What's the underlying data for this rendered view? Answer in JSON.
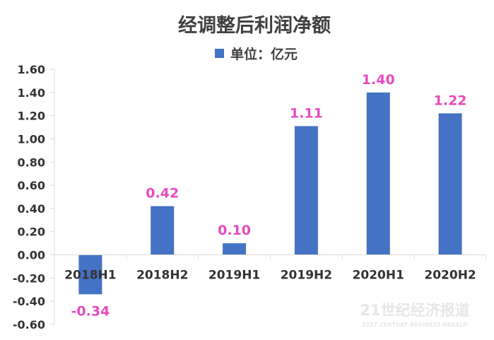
{
  "chart_data": {
    "type": "bar",
    "title": "经调整后利润净额",
    "categories": [
      "2018H1",
      "2018H2",
      "2019H1",
      "2019H2",
      "2020H1",
      "2020H2"
    ],
    "series": [
      {
        "name": "单位：亿元",
        "values": [
          -0.34,
          0.42,
          0.1,
          1.11,
          1.4,
          1.22
        ],
        "labels": [
          "-0.34",
          "0.42",
          "0.10",
          "1.11",
          "1.40",
          "1.22"
        ]
      }
    ],
    "ylim": [
      -0.6,
      1.6
    ],
    "yticks": [
      "1.60",
      "1.40",
      "1.20",
      "1.00",
      "0.80",
      "0.60",
      "0.40",
      "0.20",
      "0.00",
      "-0.20",
      "-0.40",
      "-0.60"
    ],
    "ytick_values": [
      1.6,
      1.4,
      1.2,
      1.0,
      0.8,
      0.6,
      0.4,
      0.2,
      0.0,
      -0.2,
      -0.4,
      -0.6
    ],
    "grid": false,
    "legend_position": "top-center",
    "colors": {
      "bar": "#4472c4",
      "data_label": "#e84bbd",
      "axis": "#d9d9d9",
      "text": "#333333"
    }
  },
  "watermark": {
    "main": "21世纪经济报道",
    "sub": "21ST CENTURY BUSINESS HERALD"
  }
}
